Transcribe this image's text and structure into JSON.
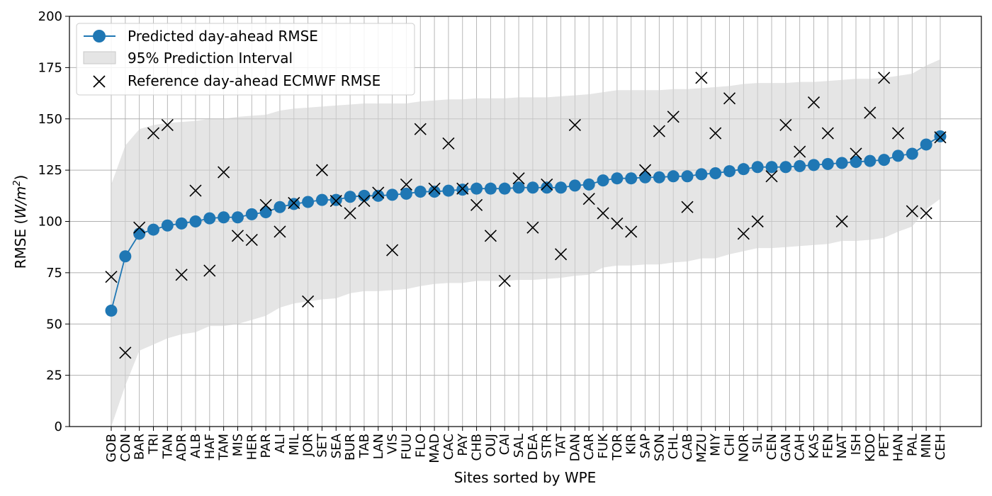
{
  "chart_data": {
    "type": "line",
    "xlabel": "Sites sorted by WPE",
    "ylabel_prefix": "RMSE (",
    "ylabel_unit_base": "W/m",
    "ylabel_unit_exp": "2",
    "ylabel_suffix": ")",
    "ylim": [
      0,
      200
    ],
    "yticks": [
      0,
      25,
      50,
      75,
      100,
      125,
      150,
      175,
      200
    ],
    "grid": true,
    "legend_position": "upper-left",
    "colors": {
      "predicted": "#1f77b4",
      "interval": "#d3d3d3",
      "reference": "#000000",
      "grid": "#b0b0b0"
    },
    "categories": [
      "GOB",
      "CON",
      "BAR",
      "TRI",
      "TAN",
      "ADR",
      "ALB",
      "HAF",
      "TAM",
      "MIS",
      "HER",
      "PAR",
      "ALI",
      "MIL",
      "JOR",
      "SET",
      "SEA",
      "BUR",
      "TAB",
      "LAN",
      "VIS",
      "FUU",
      "FLO",
      "MAD",
      "CAC",
      "PAY",
      "CHB",
      "OUJ",
      "CAI",
      "SAL",
      "DEA",
      "STR",
      "TAT",
      "DAN",
      "CAR",
      "FUK",
      "TOR",
      "KIR",
      "SAP",
      "SON",
      "CHL",
      "CAB",
      "MZU",
      "MIY",
      "CHI",
      "NOR",
      "SIL",
      "CEN",
      "GAN",
      "CAH",
      "KAS",
      "FEN",
      "NAT",
      "ISH",
      "KDO",
      "PET",
      "HAN",
      "PAL",
      "MIN",
      "CEH"
    ],
    "series": [
      {
        "name": "Predicted day-ahead RMSE",
        "values": [
          56.5,
          83,
          94,
          96,
          98,
          99,
          100,
          101.5,
          102,
          102,
          103.5,
          104.5,
          107,
          108.5,
          109.5,
          110.5,
          110.5,
          112,
          112.5,
          112.5,
          113,
          113.5,
          114.5,
          114.5,
          115,
          115.5,
          116,
          116,
          116,
          116.5,
          116.5,
          116.5,
          116.5,
          117.5,
          118,
          120,
          121,
          121,
          121.5,
          121.5,
          122,
          122,
          123,
          123.5,
          124.5,
          125.5,
          126.5,
          126.5,
          126.5,
          127,
          127.5,
          128,
          128.5,
          129,
          129.5,
          130,
          132,
          133,
          137.5,
          141.5
        ]
      },
      {
        "name": "95% Prediction Interval",
        "lower": [
          0,
          20,
          37,
          40,
          43,
          45,
          46,
          49,
          49,
          50,
          52,
          54,
          58,
          60,
          61,
          62,
          62.5,
          65,
          66,
          66,
          66.5,
          67,
          68.5,
          69.5,
          70,
          70,
          71,
          71,
          71,
          71.5,
          71.5,
          72,
          72.5,
          73.5,
          74,
          77.5,
          78.5,
          78.5,
          79,
          79,
          80,
          80.5,
          82,
          82,
          84,
          85.5,
          87,
          87,
          87.5,
          88,
          88.5,
          89,
          90.5,
          90.5,
          91,
          92,
          95,
          97.5,
          106,
          111
        ],
        "upper": [
          118,
          137,
          145,
          147,
          148,
          148.5,
          149,
          150,
          150,
          151,
          151.5,
          152,
          154,
          155,
          155.5,
          156,
          156.5,
          157,
          157.5,
          157.5,
          157.5,
          157.5,
          158.5,
          159,
          159.5,
          159.5,
          160,
          160,
          160,
          160.5,
          160.5,
          160.5,
          161,
          161.5,
          162,
          163,
          164,
          164,
          164,
          164,
          164.5,
          164.5,
          165,
          165.5,
          166,
          167,
          167.5,
          167.5,
          167.5,
          168,
          168,
          168.5,
          169,
          169.5,
          169.5,
          170,
          171,
          172,
          176,
          179
        ]
      },
      {
        "name": "Reference day-ahead ECMWF RMSE",
        "values": [
          73,
          36,
          97,
          143,
          147,
          74,
          115,
          76,
          124,
          93,
          91,
          108,
          95,
          109,
          61,
          125,
          110,
          104,
          110,
          114,
          86,
          118,
          145,
          116,
          138,
          116,
          108,
          93,
          71,
          121,
          97,
          118,
          84,
          147,
          111,
          104,
          99,
          95,
          125,
          144,
          151,
          107,
          170,
          143,
          160,
          94,
          100,
          122,
          147,
          134,
          158,
          143,
          100,
          133,
          153,
          170,
          143,
          105,
          104,
          141
        ]
      }
    ]
  }
}
